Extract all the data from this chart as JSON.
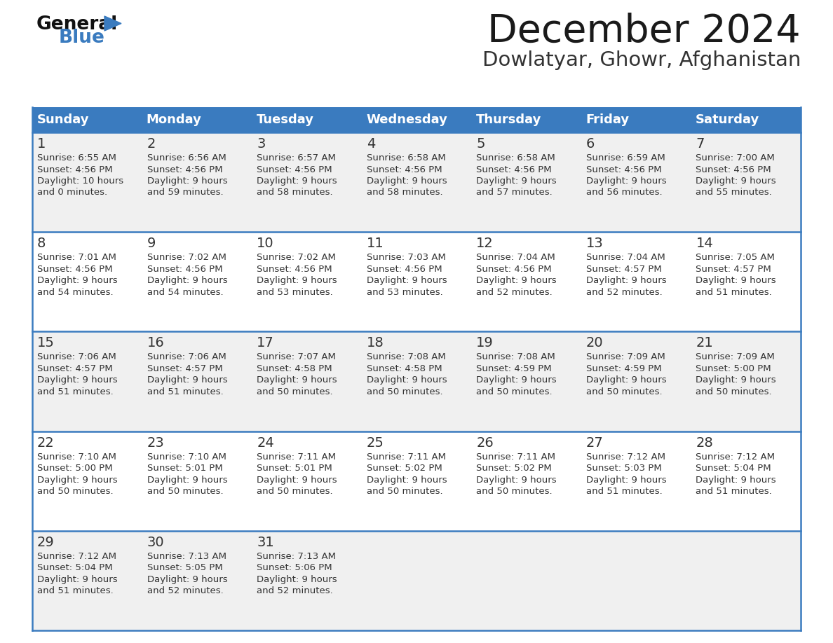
{
  "title": "December 2024",
  "subtitle": "Dowlatyar, Ghowr, Afghanistan",
  "header_bg": "#3a7bbf",
  "header_text": "#ffffff",
  "row_bg_odd": "#f0f0f0",
  "row_bg_even": "#ffffff",
  "border_color": "#3a7bbf",
  "day_headers": [
    "Sunday",
    "Monday",
    "Tuesday",
    "Wednesday",
    "Thursday",
    "Friday",
    "Saturday"
  ],
  "calendar": [
    [
      {
        "day": 1,
        "sunrise": "6:55 AM",
        "sunset": "4:56 PM",
        "daylight_h": "10 hours",
        "daylight_m": "and 0 minutes."
      },
      {
        "day": 2,
        "sunrise": "6:56 AM",
        "sunset": "4:56 PM",
        "daylight_h": "9 hours",
        "daylight_m": "and 59 minutes."
      },
      {
        "day": 3,
        "sunrise": "6:57 AM",
        "sunset": "4:56 PM",
        "daylight_h": "9 hours",
        "daylight_m": "and 58 minutes."
      },
      {
        "day": 4,
        "sunrise": "6:58 AM",
        "sunset": "4:56 PM",
        "daylight_h": "9 hours",
        "daylight_m": "and 58 minutes."
      },
      {
        "day": 5,
        "sunrise": "6:58 AM",
        "sunset": "4:56 PM",
        "daylight_h": "9 hours",
        "daylight_m": "and 57 minutes."
      },
      {
        "day": 6,
        "sunrise": "6:59 AM",
        "sunset": "4:56 PM",
        "daylight_h": "9 hours",
        "daylight_m": "and 56 minutes."
      },
      {
        "day": 7,
        "sunrise": "7:00 AM",
        "sunset": "4:56 PM",
        "daylight_h": "9 hours",
        "daylight_m": "and 55 minutes."
      }
    ],
    [
      {
        "day": 8,
        "sunrise": "7:01 AM",
        "sunset": "4:56 PM",
        "daylight_h": "9 hours",
        "daylight_m": "and 54 minutes."
      },
      {
        "day": 9,
        "sunrise": "7:02 AM",
        "sunset": "4:56 PM",
        "daylight_h": "9 hours",
        "daylight_m": "and 54 minutes."
      },
      {
        "day": 10,
        "sunrise": "7:02 AM",
        "sunset": "4:56 PM",
        "daylight_h": "9 hours",
        "daylight_m": "and 53 minutes."
      },
      {
        "day": 11,
        "sunrise": "7:03 AM",
        "sunset": "4:56 PM",
        "daylight_h": "9 hours",
        "daylight_m": "and 53 minutes."
      },
      {
        "day": 12,
        "sunrise": "7:04 AM",
        "sunset": "4:56 PM",
        "daylight_h": "9 hours",
        "daylight_m": "and 52 minutes."
      },
      {
        "day": 13,
        "sunrise": "7:04 AM",
        "sunset": "4:57 PM",
        "daylight_h": "9 hours",
        "daylight_m": "and 52 minutes."
      },
      {
        "day": 14,
        "sunrise": "7:05 AM",
        "sunset": "4:57 PM",
        "daylight_h": "9 hours",
        "daylight_m": "and 51 minutes."
      }
    ],
    [
      {
        "day": 15,
        "sunrise": "7:06 AM",
        "sunset": "4:57 PM",
        "daylight_h": "9 hours",
        "daylight_m": "and 51 minutes."
      },
      {
        "day": 16,
        "sunrise": "7:06 AM",
        "sunset": "4:57 PM",
        "daylight_h": "9 hours",
        "daylight_m": "and 51 minutes."
      },
      {
        "day": 17,
        "sunrise": "7:07 AM",
        "sunset": "4:58 PM",
        "daylight_h": "9 hours",
        "daylight_m": "and 50 minutes."
      },
      {
        "day": 18,
        "sunrise": "7:08 AM",
        "sunset": "4:58 PM",
        "daylight_h": "9 hours",
        "daylight_m": "and 50 minutes."
      },
      {
        "day": 19,
        "sunrise": "7:08 AM",
        "sunset": "4:59 PM",
        "daylight_h": "9 hours",
        "daylight_m": "and 50 minutes."
      },
      {
        "day": 20,
        "sunrise": "7:09 AM",
        "sunset": "4:59 PM",
        "daylight_h": "9 hours",
        "daylight_m": "and 50 minutes."
      },
      {
        "day": 21,
        "sunrise": "7:09 AM",
        "sunset": "5:00 PM",
        "daylight_h": "9 hours",
        "daylight_m": "and 50 minutes."
      }
    ],
    [
      {
        "day": 22,
        "sunrise": "7:10 AM",
        "sunset": "5:00 PM",
        "daylight_h": "9 hours",
        "daylight_m": "and 50 minutes."
      },
      {
        "day": 23,
        "sunrise": "7:10 AM",
        "sunset": "5:01 PM",
        "daylight_h": "9 hours",
        "daylight_m": "and 50 minutes."
      },
      {
        "day": 24,
        "sunrise": "7:11 AM",
        "sunset": "5:01 PM",
        "daylight_h": "9 hours",
        "daylight_m": "and 50 minutes."
      },
      {
        "day": 25,
        "sunrise": "7:11 AM",
        "sunset": "5:02 PM",
        "daylight_h": "9 hours",
        "daylight_m": "and 50 minutes."
      },
      {
        "day": 26,
        "sunrise": "7:11 AM",
        "sunset": "5:02 PM",
        "daylight_h": "9 hours",
        "daylight_m": "and 50 minutes."
      },
      {
        "day": 27,
        "sunrise": "7:12 AM",
        "sunset": "5:03 PM",
        "daylight_h": "9 hours",
        "daylight_m": "and 51 minutes."
      },
      {
        "day": 28,
        "sunrise": "7:12 AM",
        "sunset": "5:04 PM",
        "daylight_h": "9 hours",
        "daylight_m": "and 51 minutes."
      }
    ],
    [
      {
        "day": 29,
        "sunrise": "7:12 AM",
        "sunset": "5:04 PM",
        "daylight_h": "9 hours",
        "daylight_m": "and 51 minutes."
      },
      {
        "day": 30,
        "sunrise": "7:13 AM",
        "sunset": "5:05 PM",
        "daylight_h": "9 hours",
        "daylight_m": "and 52 minutes."
      },
      {
        "day": 31,
        "sunrise": "7:13 AM",
        "sunset": "5:06 PM",
        "daylight_h": "9 hours",
        "daylight_m": "and 52 minutes."
      },
      null,
      null,
      null,
      null
    ]
  ],
  "logo_triangle_color": "#3a7bbf",
  "fig_width": 11.88,
  "fig_height": 9.18,
  "dpi": 100
}
